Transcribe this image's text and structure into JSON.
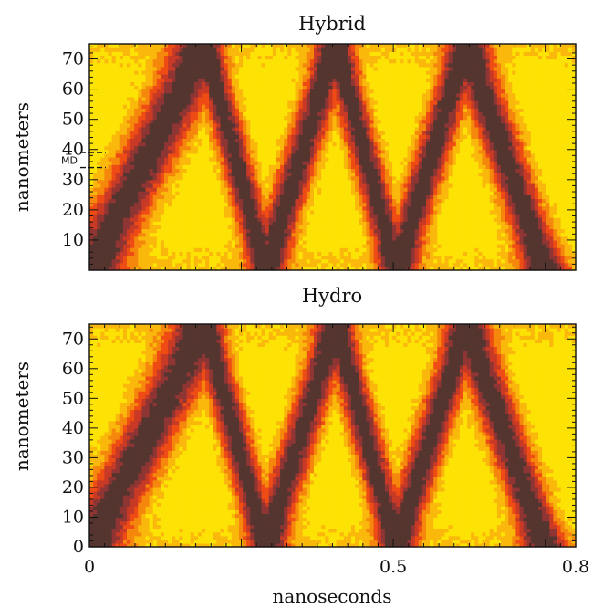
{
  "chart_data": [
    {
      "type": "heatmap",
      "title": "Hybrid",
      "xlabel": "",
      "ylabel": "nanometers",
      "xlim": [
        0,
        0.8
      ],
      "ylim": [
        0,
        75
      ],
      "x_ticks": [],
      "y_ticks": [
        "10",
        "20",
        "30",
        "40",
        "50",
        "60",
        "70"
      ],
      "annotation": {
        "label": "MD",
        "y_range": [
          34,
          39
        ]
      },
      "pattern": {
        "description_units": "bands of high value travelling between y=0 and y=75",
        "wall_hits_ns": [
          0.0,
          0.19,
          0.29,
          0.405,
          0.505,
          0.62,
          0.75
        ],
        "walls_nm": [
          0,
          75,
          0,
          75,
          0,
          75,
          0
        ]
      }
    },
    {
      "type": "heatmap",
      "title": "Hydro",
      "xlabel": "nanoseconds",
      "ylabel": "nanometers",
      "xlim": [
        0,
        0.8
      ],
      "ylim": [
        0,
        75
      ],
      "x_ticks": [
        "0",
        "0.5",
        "0.8"
      ],
      "y_ticks": [
        "0",
        "10",
        "20",
        "30",
        "40",
        "50",
        "60",
        "70"
      ],
      "pattern": {
        "description_units": "bands of high value travelling between y=0 and y=75",
        "wall_hits_ns": [
          0.0,
          0.19,
          0.29,
          0.405,
          0.505,
          0.62,
          0.75
        ],
        "walls_nm": [
          0,
          75,
          0,
          75,
          0,
          75,
          0
        ]
      }
    }
  ],
  "colors": {
    "levels": [
      "#fde305",
      "#f9b80b",
      "#f5880c",
      "#ee4c14",
      "#c83a25",
      "#8f3533",
      "#55352f"
    ]
  }
}
